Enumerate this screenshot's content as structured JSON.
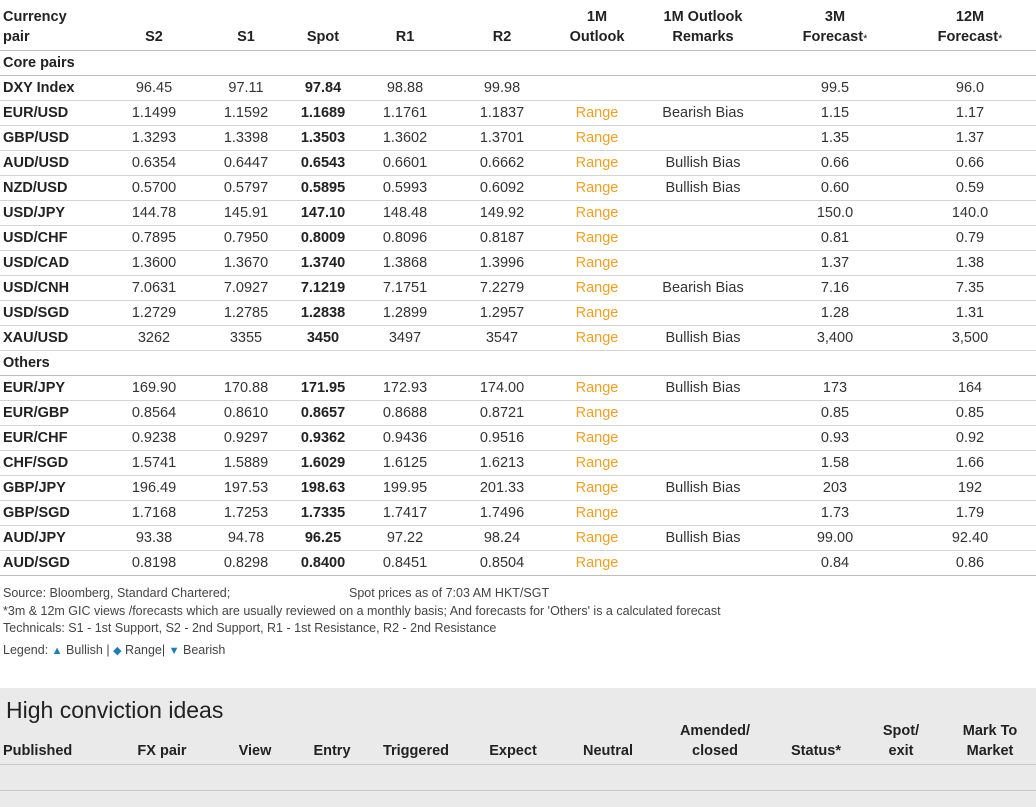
{
  "rates_table": {
    "headers": {
      "pair": [
        "Currency",
        "pair"
      ],
      "s2": "S2",
      "s1": "S1",
      "spot": "Spot",
      "r1": "R1",
      "r2": "R2",
      "outlook": [
        "1M",
        "Outlook"
      ],
      "remarks": [
        "1M Outlook",
        "Remarks"
      ],
      "f3m": [
        "3M",
        "Forecast"
      ],
      "f12m": [
        "12M",
        "Forecast"
      ],
      "asterisk": "*"
    },
    "sections": [
      {
        "title": "Core pairs",
        "rows": [
          [
            "DXY Index",
            "96.45",
            "97.11",
            "97.84",
            "98.88",
            "99.98",
            "",
            "",
            "99.5",
            "96.0"
          ],
          [
            "EUR/USD",
            "1.1499",
            "1.1592",
            "1.1689",
            "1.1761",
            "1.1837",
            "Range",
            "Bearish Bias",
            "1.15",
            "1.17"
          ],
          [
            "GBP/USD",
            "1.3293",
            "1.3398",
            "1.3503",
            "1.3602",
            "1.3701",
            "Range",
            "",
            "1.35",
            "1.37"
          ],
          [
            "AUD/USD",
            "0.6354",
            "0.6447",
            "0.6543",
            "0.6601",
            "0.6662",
            "Range",
            "Bullish Bias",
            "0.66",
            "0.66"
          ],
          [
            "NZD/USD",
            "0.5700",
            "0.5797",
            "0.5895",
            "0.5993",
            "0.6092",
            "Range",
            "Bullish Bias",
            "0.60",
            "0.59"
          ],
          [
            "USD/JPY",
            "144.78",
            "145.91",
            "147.10",
            "148.48",
            "149.92",
            "Range",
            "",
            "150.0",
            "140.0"
          ],
          [
            "USD/CHF",
            "0.7895",
            "0.7950",
            "0.8009",
            "0.8096",
            "0.8187",
            "Range",
            "",
            "0.81",
            "0.79"
          ],
          [
            "USD/CAD",
            "1.3600",
            "1.3670",
            "1.3740",
            "1.3868",
            "1.3996",
            "Range",
            "",
            "1.37",
            "1.38"
          ],
          [
            "USD/CNH",
            "7.0631",
            "7.0927",
            "7.1219",
            "7.1751",
            "7.2279",
            "Range",
            "Bearish Bias",
            "7.16",
            "7.35"
          ],
          [
            "USD/SGD",
            "1.2729",
            "1.2785",
            "1.2838",
            "1.2899",
            "1.2957",
            "Range",
            "",
            "1.28",
            "1.31"
          ],
          [
            "XAU/USD",
            "3262",
            "3355",
            "3450",
            "3497",
            "3547",
            "Range",
            "Bullish Bias",
            "3,400",
            "3,500"
          ]
        ]
      },
      {
        "title": "Others",
        "rows": [
          [
            "EUR/JPY",
            "169.90",
            "170.88",
            "171.95",
            "172.93",
            "174.00",
            "Range",
            "Bullish Bias",
            "173",
            "164"
          ],
          [
            "EUR/GBP",
            "0.8564",
            "0.8610",
            "0.8657",
            "0.8688",
            "0.8721",
            "Range",
            "",
            "0.85",
            "0.85"
          ],
          [
            "EUR/CHF",
            "0.9238",
            "0.9297",
            "0.9362",
            "0.9436",
            "0.9516",
            "Range",
            "",
            "0.93",
            "0.92"
          ],
          [
            "CHF/SGD",
            "1.5741",
            "1.5889",
            "1.6029",
            "1.6125",
            "1.6213",
            "Range",
            "",
            "1.58",
            "1.66"
          ],
          [
            "GBP/JPY",
            "196.49",
            "197.53",
            "198.63",
            "199.95",
            "201.33",
            "Range",
            "Bullish Bias",
            "203",
            "192"
          ],
          [
            "GBP/SGD",
            "1.7168",
            "1.7253",
            "1.7335",
            "1.7417",
            "1.7496",
            "Range",
            "",
            "1.73",
            "1.79"
          ],
          [
            "AUD/JPY",
            "93.38",
            "94.78",
            "96.25",
            "97.22",
            "98.24",
            "Range",
            "Bullish Bias",
            "99.00",
            "92.40"
          ],
          [
            "AUD/SGD",
            "0.8198",
            "0.8298",
            "0.8400",
            "0.8451",
            "0.8504",
            "Range",
            "",
            "0.84",
            "0.86"
          ]
        ]
      }
    ]
  },
  "notes": {
    "source": "Source: Bloomberg, Standard Chartered;",
    "spot_time": "Spot prices as of 7:03 AM HKT/SGT",
    "footnote": "*3m & 12m GIC views /forecasts which are usually reviewed on a monthly basis; And forecasts for 'Others' is a calculated forecast",
    "technicals": "Technicals: S1 - 1st Support, S2 - 2nd Support, R1 - 1st Resistance, R2 - 2nd Resistance",
    "legend": {
      "label": "Legend:",
      "bullish_icon": "▲",
      "bullish": "Bullish",
      "sep1": "|",
      "range_icon": "◆",
      "range": "Range",
      "sep2": "|",
      "bearish_icon": "▼",
      "bearish": "Bearish"
    }
  },
  "high_conviction": {
    "title": "High conviction ideas",
    "columns": [
      [
        "Published"
      ],
      [
        "FX pair"
      ],
      [
        "View"
      ],
      [
        "Entry"
      ],
      [
        "Triggered"
      ],
      [
        "Expect"
      ],
      [
        "Neutral"
      ],
      [
        "Amended/",
        "closed"
      ],
      [
        "Status*"
      ],
      [
        "Spot/",
        "exit"
      ],
      [
        "Mark To",
        "Market"
      ]
    ]
  },
  "colors": {
    "range_text": "#f0a020",
    "legend_icon": "#1a7fb8",
    "panel_bg": "#eaeaea"
  }
}
